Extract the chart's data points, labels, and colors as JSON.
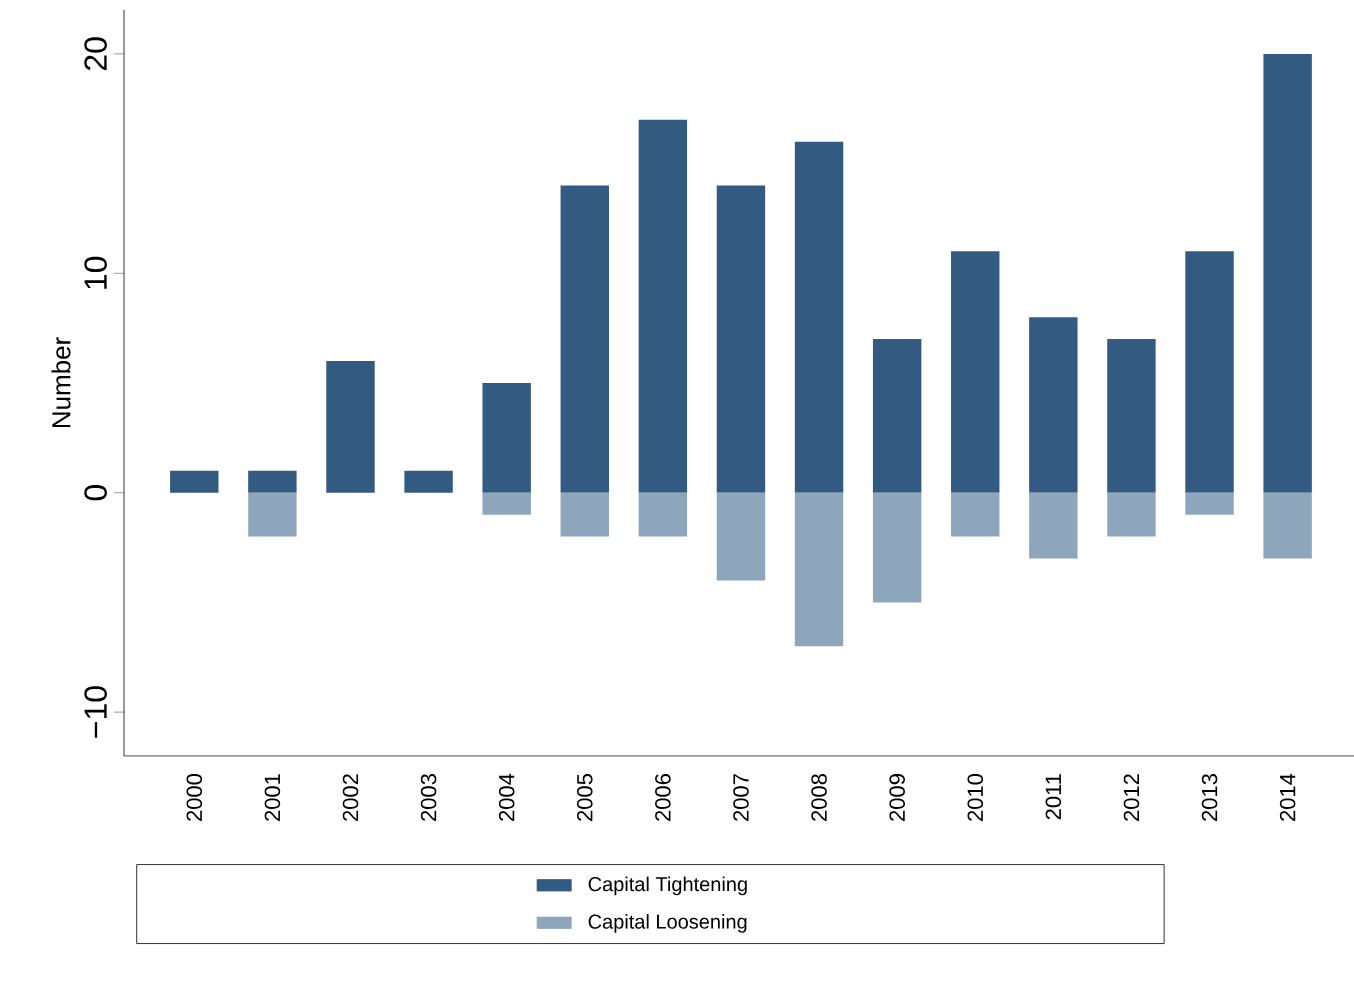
{
  "chart_data": {
    "type": "bar",
    "ylabel": "Number",
    "categories": [
      "2000",
      "2001",
      "2002",
      "2003",
      "2004",
      "2005",
      "2006",
      "2007",
      "2008",
      "2009",
      "2010",
      "2011",
      "2012",
      "2013",
      "2014"
    ],
    "series": [
      {
        "name": "Capital Tightening",
        "color": "#335a80",
        "values": [
          1,
          1,
          6,
          1,
          5,
          14,
          17,
          14,
          16,
          7,
          11,
          8,
          7,
          11,
          20
        ]
      },
      {
        "name": "Capital Loosening",
        "color": "#8ea6bc",
        "values": [
          0,
          -2,
          0,
          0,
          -1,
          -2,
          -2,
          -4,
          -7,
          -5,
          -2,
          -3,
          -2,
          -1,
          -3
        ]
      }
    ],
    "ylim": [
      -12,
      22
    ],
    "yticks": [
      {
        "value": -10,
        "label": "−10"
      },
      0,
      10,
      20
    ],
    "stacked": true,
    "legend": "bottom"
  }
}
